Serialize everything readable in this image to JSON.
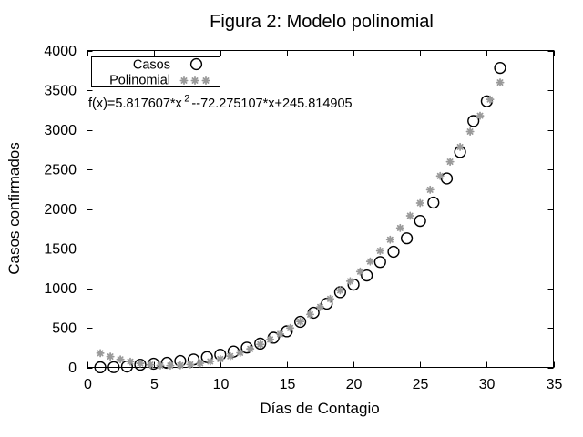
{
  "title": "Figura 2: Modelo polinomial",
  "equation": {
    "prefix": "f(x)=5.817607*x",
    "superscript": "2",
    "suffix": "--72.275107*x+245.814905"
  },
  "legend": {
    "items": [
      {
        "label": "Casos",
        "marker": "open-circle"
      },
      {
        "label": "Polinomial",
        "marker": "asterisk"
      }
    ]
  },
  "axes": {
    "x_label": "Días de Contagio",
    "y_label": "Casos confirmados",
    "x_ticks": [
      0,
      5,
      10,
      15,
      20,
      25,
      30,
      35
    ],
    "y_ticks": [
      0,
      500,
      1000,
      1500,
      2000,
      2500,
      3000,
      3500,
      4000
    ]
  },
  "colors": {
    "casos": "#000000",
    "polinomial": "#9a9a9a"
  },
  "chart_data": {
    "type": "scatter",
    "title": "Figura 2: Modelo polinomial",
    "xlabel": "Días de Contagio",
    "ylabel": "Casos confirmados",
    "xlim": [
      0,
      35
    ],
    "ylim": [
      0,
      4000
    ],
    "grid": false,
    "legend_position": "top-left",
    "series": [
      {
        "name": "Casos",
        "marker": "open-circle",
        "color": "#000000",
        "x": [
          1,
          2,
          3,
          4,
          5,
          6,
          7,
          8,
          9,
          10,
          11,
          12,
          13,
          14,
          15,
          16,
          17,
          18,
          19,
          20,
          21,
          22,
          23,
          24,
          25,
          26,
          27,
          28,
          29,
          30,
          31
        ],
        "y": [
          1,
          2,
          10,
          33,
          46,
          58,
          80,
          100,
          130,
          160,
          200,
          250,
          300,
          375,
          455,
          575,
          690,
          805,
          950,
          1045,
          1160,
          1330,
          1460,
          1630,
          1850,
          2080,
          2385,
          2720,
          3110,
          3360,
          3780
        ]
      },
      {
        "name": "Polinomial",
        "marker": "asterisk",
        "color": "#9a9a9a",
        "model": "f(x)=5.817607*x^2-72.275107*x+245.814905",
        "coefficients": {
          "a": 5.817607,
          "b": -72.275107,
          "c": 245.814905
        },
        "x_start": 1,
        "x_end": 31,
        "x_step": 0.75
      }
    ]
  }
}
